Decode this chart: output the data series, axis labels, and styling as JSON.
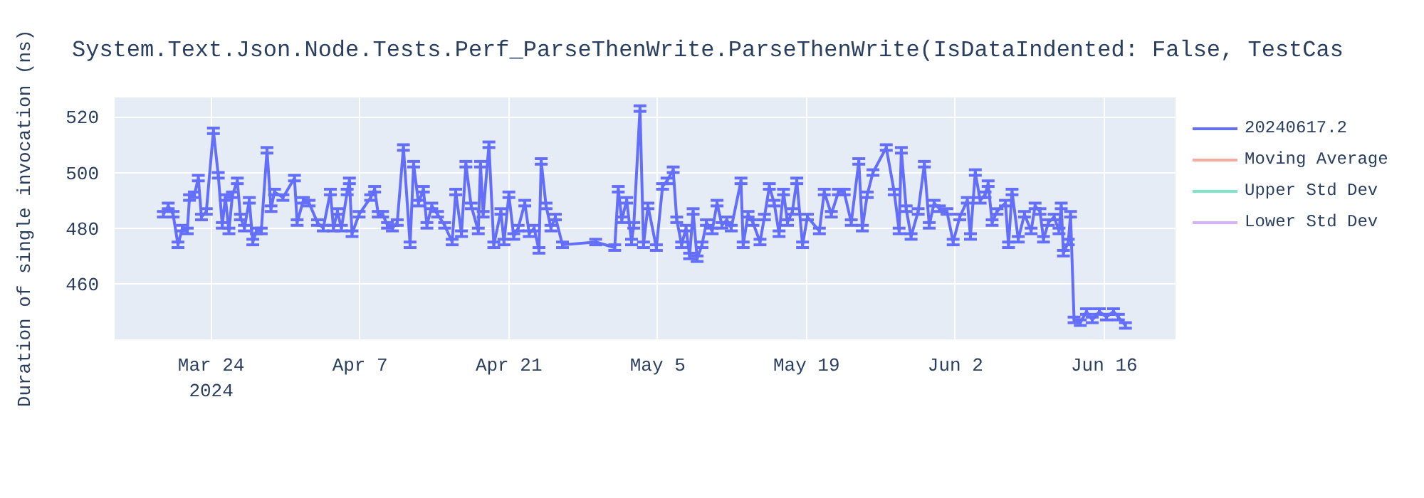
{
  "chart_data": {
    "type": "line",
    "title": "System.Text.Json.Node.Tests.Perf_ParseThenWrite.ParseThenWrite(IsDataIndented: False, TestCas",
    "ylabel": "Duration of single invocation (ns)",
    "xlim": [
      "2024-03-14T22:00",
      "2024-06-22T17:00"
    ],
    "ylim": [
      440,
      527
    ],
    "xticks": [
      {
        "value": "2024-03-24",
        "label": "Mar 24\n2024"
      },
      {
        "value": "2024-04-07",
        "label": "Apr 7"
      },
      {
        "value": "2024-04-21",
        "label": "Apr 21"
      },
      {
        "value": "2024-05-05",
        "label": "May 5"
      },
      {
        "value": "2024-05-19",
        "label": "May 19"
      },
      {
        "value": "2024-06-02",
        "label": "Jun 2"
      },
      {
        "value": "2024-06-16",
        "label": "Jun 16"
      }
    ],
    "yticks": [
      460,
      480,
      500,
      520
    ],
    "grid": true,
    "legend": "top right",
    "marker": "none",
    "line_style": "solid",
    "x": [
      "2024-03-19T12:00",
      "2024-03-19T23:00",
      "2024-03-20T10:00",
      "2024-03-20T21:00",
      "2024-03-21T07:00",
      "2024-03-21T18:00",
      "2024-03-21T23:00",
      "2024-03-22T10:00",
      "2024-03-22T19:00",
      "2024-03-23T02:00",
      "2024-03-23T13:00",
      "2024-03-24T05:00",
      "2024-03-24T16:00",
      "2024-03-25T01:00",
      "2024-03-25T08:00",
      "2024-03-25T16:00",
      "2024-03-26T00:00",
      "2024-03-26T11:00",
      "2024-03-26T18:00",
      "2024-03-27T03:00",
      "2024-03-27T14:00",
      "2024-03-27T22:00",
      "2024-03-28T06:00",
      "2024-03-28T17:00",
      "2024-03-29T06:00",
      "2024-03-29T15:00",
      "2024-03-29T23:00",
      "2024-03-30T18:00",
      "2024-03-31T20:00",
      "2024-04-01T02:00",
      "2024-04-01T16:00",
      "2024-04-02T05:00",
      "2024-04-03T00:00",
      "2024-04-03T13:00",
      "2024-04-04T05:00",
      "2024-04-04T12:00",
      "2024-04-04T21:00",
      "2024-04-05T06:00",
      "2024-04-05T19:00",
      "2024-04-06T00:00",
      "2024-04-06T06:00",
      "2024-04-06T22:00",
      "2024-04-08T00:00",
      "2024-04-08T09:00",
      "2024-04-08T17:00",
      "2024-04-09T03:00",
      "2024-04-09T14:00",
      "2024-04-10T01:00",
      "2024-04-10T12:00",
      "2024-04-11T02:00",
      "2024-04-11T17:00",
      "2024-04-12T01:00",
      "2024-04-12T12:00",
      "2024-04-12T23:00",
      "2024-04-13T07:00",
      "2024-04-13T18:00",
      "2024-04-14T07:00",
      "2024-04-14T23:00",
      "2024-04-15T16:00",
      "2024-04-16T00:00",
      "2024-04-16T13:00",
      "2024-04-16T23:00",
      "2024-04-17T11:00",
      "2024-04-18T03:00",
      "2024-04-18T08:00",
      "2024-04-18T14:00",
      "2024-04-19T03:00",
      "2024-04-19T14:00",
      "2024-04-20T06:00",
      "2024-04-20T13:00",
      "2024-04-21T00:00",
      "2024-04-21T11:00",
      "2024-04-21T21:00",
      "2024-04-22T12:00",
      "2024-04-22T22:00",
      "2024-04-23T09:00",
      "2024-04-23T20:00",
      "2024-04-24T01:00",
      "2024-04-24T12:00",
      "2024-04-24T23:00",
      "2024-04-25T09:00",
      "2024-04-26T01:00",
      "2024-04-29T04:00",
      "2024-04-30T23:00",
      "2024-05-01T07:00",
      "2024-05-01T15:00",
      "2024-05-02T02:00",
      "2024-05-02T13:00",
      "2024-05-02T18:00",
      "2024-05-03T08:00",
      "2024-05-03T16:00",
      "2024-05-04T02:00",
      "2024-05-04T21:00",
      "2024-05-05T11:00",
      "2024-05-05T21:00",
      "2024-05-06T11:00",
      "2024-05-06T19:00",
      "2024-05-07T06:00",
      "2024-05-07T16:00",
      "2024-05-08T00:00",
      "2024-05-08T08:00",
      "2024-05-08T17:00",
      "2024-05-09T04:00",
      "2024-05-09T14:00",
      "2024-05-10T03:00",
      "2024-05-10T14:00",
      "2024-05-11T01:00",
      "2024-05-11T12:00",
      "2024-05-11T22:00",
      "2024-05-12T20:00",
      "2024-05-13T01:00",
      "2024-05-13T12:00",
      "2024-05-13T23:00",
      "2024-05-14T15:00",
      "2024-05-15T01:00",
      "2024-05-15T12:00",
      "2024-05-15T23:00",
      "2024-05-16T10:00",
      "2024-05-16T20:00",
      "2024-05-17T05:00",
      "2024-05-17T16:00",
      "2024-05-18T02:00",
      "2024-05-18T15:00",
      "2024-05-19T02:00",
      "2024-05-20T05:00",
      "2024-05-20T16:00",
      "2024-05-21T08:00",
      "2024-05-22T00:00",
      "2024-05-22T13:00",
      "2024-05-23T05:00",
      "2024-05-23T22:00",
      "2024-05-24T06:00",
      "2024-05-24T17:00",
      "2024-05-25T06:00",
      "2024-05-26T12:00",
      "2024-05-27T06:00",
      "2024-05-27T17:00",
      "2024-05-27T22:00",
      "2024-05-28T09:00",
      "2024-05-28T20:00",
      "2024-05-29T12:00",
      "2024-05-30T02:00",
      "2024-05-30T13:00",
      "2024-05-31T00:00",
      "2024-05-31T12:00",
      "2024-06-01T05:00",
      "2024-06-01T19:00",
      "2024-06-02T10:00",
      "2024-06-03T03:00",
      "2024-06-03T10:00",
      "2024-06-03T21:00",
      "2024-06-04T08:00",
      "2024-06-04T19:00",
      "2024-06-05T02:00",
      "2024-06-05T11:00",
      "2024-06-05T22:00",
      "2024-06-06T17:00",
      "2024-06-07T00:00",
      "2024-06-07T08:00",
      "2024-06-07T22:00",
      "2024-06-08T12:00",
      "2024-06-09T03:00",
      "2024-06-09T12:00",
      "2024-06-09T23:00",
      "2024-06-10T07:00",
      "2024-06-10T18:00",
      "2024-06-11T07:00",
      "2024-06-11T18:00",
      "2024-06-11T23:00",
      "2024-06-12T04:00",
      "2024-06-12T15:00",
      "2024-06-12T20:00",
      "2024-06-13T04:00",
      "2024-06-13T18:00",
      "2024-06-14T08:00",
      "2024-06-14T21:00",
      "2024-06-15T13:00",
      "2024-06-16T05:00",
      "2024-06-16T21:00",
      "2024-06-17T08:00",
      "2024-06-18T00:00"
    ],
    "series": [
      {
        "name": "20240617.2",
        "color": "#636efa",
        "values": [
          485,
          488,
          485,
          474,
          480,
          479,
          491,
          492,
          498,
          484,
          486,
          515,
          499,
          481,
          491,
          479,
          492,
          497,
          484,
          480,
          490,
          475,
          479,
          479,
          508,
          487,
          493,
          491,
          498,
          482,
          490,
          489,
          482,
          480,
          493,
          480,
          486,
          480,
          493,
          497,
          478,
          485,
          491,
          494,
          485,
          485,
          481,
          480,
          482,
          509,
          474,
          503,
          489,
          494,
          481,
          488,
          485,
          481,
          475,
          493,
          478,
          503,
          488,
          479,
          503,
          485,
          510,
          474,
          486,
          475,
          492,
          477,
          480,
          489,
          478,
          480,
          472,
          504,
          488,
          480,
          484,
          474,
          475,
          473,
          494,
          483,
          490,
          475,
          481,
          523,
          474,
          488,
          473,
          495,
          497,
          501,
          483,
          474,
          480,
          470,
          486,
          469,
          474,
          482,
          479,
          489,
          481,
          483,
          480,
          497,
          474,
          485,
          482,
          475,
          484,
          495,
          489,
          478,
          493,
          482,
          486,
          497,
          474,
          484,
          479,
          493,
          485,
          493,
          493,
          482,
          504,
          480,
          492,
          500,
          509,
          493,
          479,
          508,
          487,
          477,
          486,
          503,
          481,
          489,
          487,
          486,
          475,
          484,
          490,
          477,
          500,
          490,
          492,
          496,
          482,
          486,
          489,
          474,
          493,
          476,
          485,
          479,
          488,
          486,
          476,
          482,
          484,
          479,
          488,
          471,
          475,
          485,
          447,
          446,
          450,
          447,
          450,
          448,
          450,
          448,
          445
        ],
        "errors": [
          1,
          1,
          1,
          1,
          1,
          1,
          1,
          1,
          1,
          1,
          1,
          1,
          1,
          1,
          1,
          1,
          1,
          1,
          1,
          1,
          1,
          1,
          1,
          1,
          1,
          1,
          1,
          1,
          1,
          1,
          1,
          1,
          1,
          1,
          1,
          1,
          1,
          1,
          1,
          1,
          1,
          1,
          1,
          1,
          1,
          1,
          1,
          1,
          1,
          1,
          1,
          1,
          1,
          1,
          1,
          1,
          1,
          1,
          1,
          1,
          1,
          1,
          1,
          1,
          1,
          1,
          1,
          1,
          1,
          1,
          1,
          1,
          1,
          1,
          1,
          1,
          1,
          1,
          1,
          1,
          1,
          1,
          1,
          1,
          1,
          1,
          1,
          1,
          1,
          1,
          1,
          1,
          1,
          1,
          1,
          1,
          1,
          1,
          1,
          1,
          1,
          1,
          1,
          1,
          1,
          1,
          1,
          1,
          1,
          1,
          1,
          1,
          1,
          1,
          1,
          1,
          1,
          1,
          1,
          1,
          1,
          1,
          1,
          1,
          1,
          1,
          1,
          1,
          1,
          1,
          1,
          1,
          1,
          1,
          1,
          1,
          1,
          1,
          1,
          1,
          1,
          1,
          1,
          1,
          1,
          1,
          1,
          1,
          1,
          1,
          1,
          1,
          1,
          1,
          1,
          1,
          1,
          1,
          1,
          1,
          1,
          1,
          1,
          1,
          1,
          1,
          1,
          1,
          1,
          1,
          1,
          1,
          1,
          1,
          1,
          1,
          1,
          1,
          1,
          1,
          1
        ]
      },
      {
        "name": "Moving Average",
        "color": "#ef553b",
        "values": [
          null,
          null,
          null,
          null,
          null,
          null,
          null,
          null,
          null,
          null,
          null,
          null,
          null,
          null,
          null,
          null,
          null,
          null,
          null,
          null,
          null,
          null,
          null,
          null,
          null,
          null,
          null,
          null,
          null,
          null,
          null,
          null,
          null,
          null,
          null,
          null,
          null,
          null,
          null,
          null,
          null,
          null,
          null,
          null,
          null,
          null,
          null,
          null,
          null,
          null,
          null,
          null,
          null,
          null,
          null,
          null,
          null,
          null,
          null,
          null,
          null,
          null,
          null,
          null,
          null,
          null,
          null,
          null,
          null,
          null,
          null,
          null,
          null,
          null,
          null,
          null,
          null,
          null,
          null,
          null,
          null,
          null,
          null,
          null,
          null,
          null,
          null,
          null,
          null,
          null,
          null,
          null,
          null,
          null,
          null,
          null,
          null,
          null,
          null,
          null,
          null,
          null,
          null,
          null,
          null,
          null,
          null,
          null,
          null,
          null,
          null,
          null,
          null,
          null,
          null,
          null,
          null,
          null,
          null,
          null,
          null,
          null,
          null,
          null,
          null,
          null,
          null,
          null,
          null,
          null,
          null,
          null,
          null,
          null,
          null,
          null,
          null,
          null,
          null,
          null,
          null,
          null,
          null,
          null,
          null,
          null,
          null,
          null,
          null,
          null,
          null,
          null,
          null,
          null,
          null,
          null,
          null,
          null,
          null,
          null,
          null,
          null,
          null,
          null,
          null,
          null,
          null,
          null,
          null,
          null,
          null,
          null,
          null,
          null,
          null,
          null,
          null,
          null,
          null,
          null,
          null
        ]
      },
      {
        "name": "Upper Std Dev",
        "color": "#00cc96",
        "values": [
          null,
          null,
          null,
          null,
          null,
          null,
          null,
          null,
          null,
          null,
          null,
          null,
          null,
          null,
          null,
          null,
          null,
          null,
          null,
          null,
          null,
          null,
          null,
          null,
          null,
          null,
          null,
          null,
          null,
          null,
          null,
          null,
          null,
          null,
          null,
          null,
          null,
          null,
          null,
          null,
          null,
          null,
          null,
          null,
          null,
          null,
          null,
          null,
          null,
          null,
          null,
          null,
          null,
          null,
          null,
          null,
          null,
          null,
          null,
          null,
          null,
          null,
          null,
          null,
          null,
          null,
          null,
          null,
          null,
          null,
          null,
          null,
          null,
          null,
          null,
          null,
          null,
          null,
          null,
          null,
          null,
          null,
          null,
          null,
          null,
          null,
          null,
          null,
          null,
          null,
          null,
          null,
          null,
          null,
          null,
          null,
          null,
          null,
          null,
          null,
          null,
          null,
          null,
          null,
          null,
          null,
          null,
          null,
          null,
          null,
          null,
          null,
          null,
          null,
          null,
          null,
          null,
          null,
          null,
          null,
          null,
          null,
          null,
          null,
          null,
          null,
          null,
          null,
          null,
          null,
          null,
          null,
          null,
          null,
          null,
          null,
          null,
          null,
          null,
          null,
          null,
          null,
          null,
          null,
          null,
          null,
          null,
          null,
          null,
          null,
          null,
          null,
          null,
          null,
          null,
          null,
          null,
          null,
          null,
          null,
          null,
          null,
          null,
          null,
          null,
          null,
          null,
          null,
          null,
          null,
          null,
          null,
          null,
          null,
          null,
          null,
          null,
          null,
          null,
          null,
          null
        ]
      },
      {
        "name": "Lower Std Dev",
        "color": "#ab63fa",
        "values": [
          null,
          null,
          null,
          null,
          null,
          null,
          null,
          null,
          null,
          null,
          null,
          null,
          null,
          null,
          null,
          null,
          null,
          null,
          null,
          null,
          null,
          null,
          null,
          null,
          null,
          null,
          null,
          null,
          null,
          null,
          null,
          null,
          null,
          null,
          null,
          null,
          null,
          null,
          null,
          null,
          null,
          null,
          null,
          null,
          null,
          null,
          null,
          null,
          null,
          null,
          null,
          null,
          null,
          null,
          null,
          null,
          null,
          null,
          null,
          null,
          null,
          null,
          null,
          null,
          null,
          null,
          null,
          null,
          null,
          null,
          null,
          null,
          null,
          null,
          null,
          null,
          null,
          null,
          null,
          null,
          null,
          null,
          null,
          null,
          null,
          null,
          null,
          null,
          null,
          null,
          null,
          null,
          null,
          null,
          null,
          null,
          null,
          null,
          null,
          null,
          null,
          null,
          null,
          null,
          null,
          null,
          null,
          null,
          null,
          null,
          null,
          null,
          null,
          null,
          null,
          null,
          null,
          null,
          null,
          null,
          null,
          null,
          null,
          null,
          null,
          null,
          null,
          null,
          null,
          null,
          null,
          null,
          null,
          null,
          null,
          null,
          null,
          null,
          null,
          null,
          null,
          null,
          null,
          null,
          null,
          null,
          null,
          null,
          null,
          null,
          null,
          null,
          null,
          null,
          null,
          null,
          null,
          null,
          null,
          null,
          null,
          null,
          null,
          null,
          null,
          null,
          null,
          null,
          null,
          null,
          null,
          null,
          null,
          null,
          null,
          null,
          null,
          null,
          null,
          null,
          null
        ]
      }
    ]
  }
}
